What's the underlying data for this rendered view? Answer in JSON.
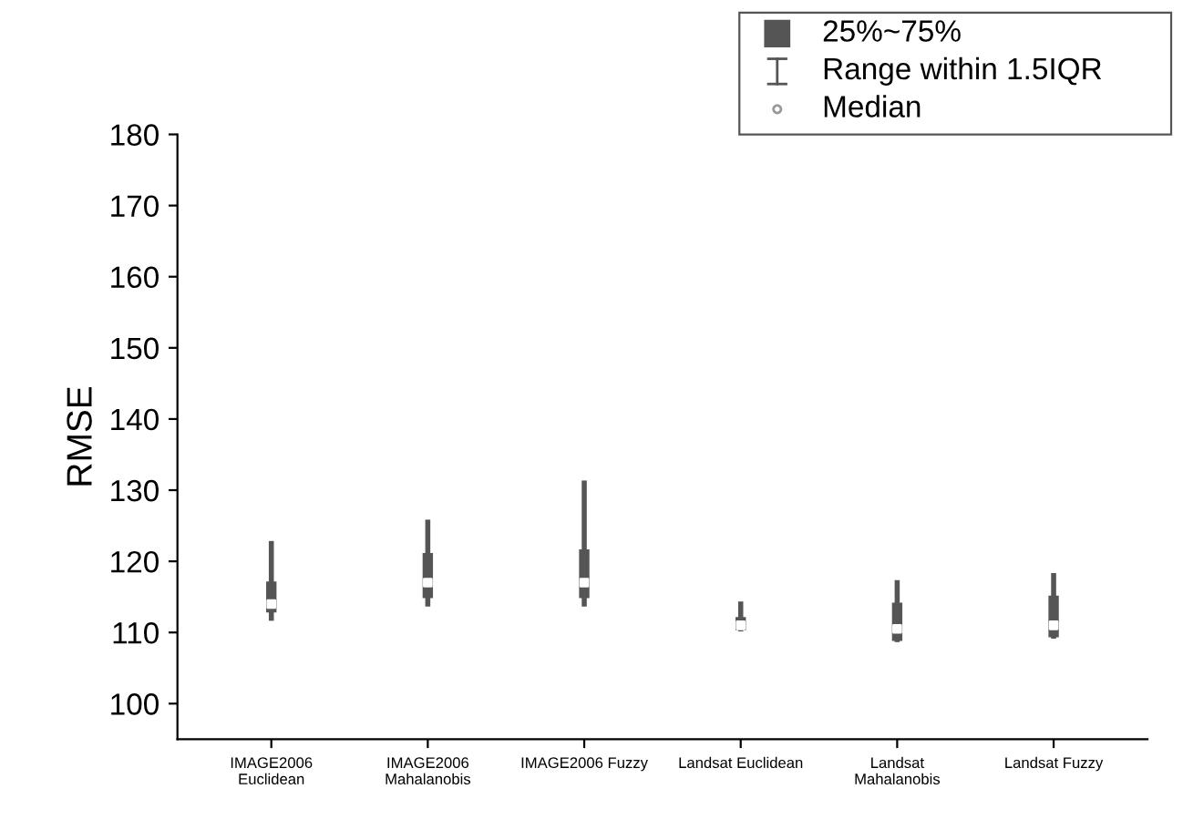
{
  "chart_data": {
    "type": "box",
    "ylabel": "RMSE",
    "categories": [
      "IMAGE2006\nEuclidean",
      "IMAGE2006\nMahalanobis",
      "IMAGE2006 Fuzzy",
      "Landsat Euclidean",
      "Landsat\nMahalanobis",
      "Landsat Fuzzy"
    ],
    "series": [
      {
        "color": "#555555",
        "boxes": [
          {
            "low": 112,
            "q1": 113,
            "median": 114,
            "q3": 117,
            "high": 122.5
          },
          {
            "low": 114,
            "q1": 115,
            "median": 117,
            "q3": 121,
            "high": 125.5
          },
          {
            "low": 114,
            "q1": 115,
            "median": 117,
            "q3": 121.5,
            "high": 131
          },
          {
            "low": 110.5,
            "q1": 110.5,
            "median": 111,
            "q3": 112,
            "high": 114
          },
          {
            "low": 109,
            "q1": 109,
            "median": 110.5,
            "q3": 114,
            "high": 117
          },
          {
            "low": 109.5,
            "q1": 109.5,
            "median": 111,
            "q3": 115,
            "high": 118
          }
        ]
      }
    ],
    "ylim": [
      95,
      180
    ],
    "yticks": [
      100,
      110,
      120,
      130,
      140,
      150,
      160,
      170,
      180
    ],
    "annotations": [
      "25%~75%",
      "Range within 1.5IQR",
      "Median"
    ]
  }
}
